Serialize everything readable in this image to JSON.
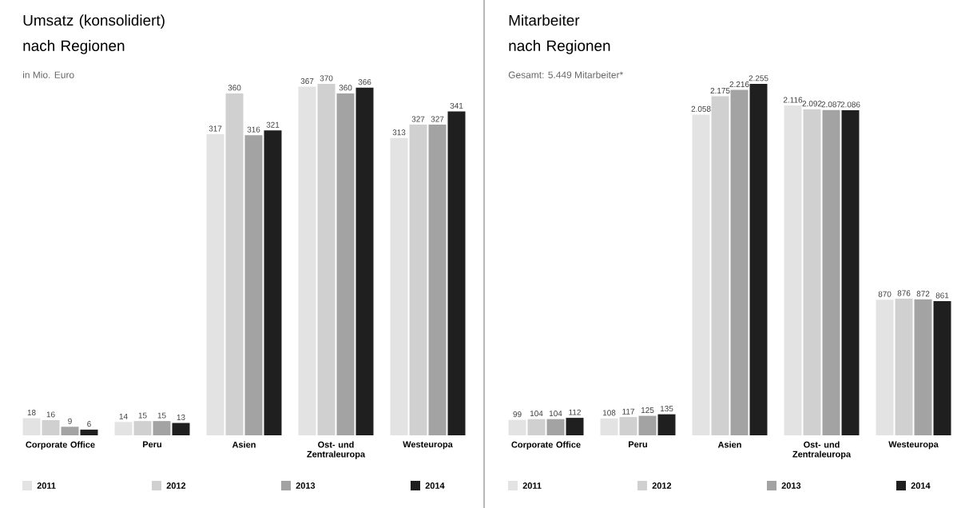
{
  "chart_data": [
    {
      "type": "bar",
      "title": "Umsatz (konsolidiert) nach Regionen",
      "subtitle": "in Mio. Euro",
      "categories": [
        "Corporate Office",
        "Peru",
        "Asien",
        "Ost- und Zentraleuropa",
        "Westeuropa"
      ],
      "legend": "bottom",
      "data_labels": true,
      "series": [
        {
          "name": "2011",
          "color": "#e3e3e3",
          "values": [
            18,
            14,
            317,
            367,
            313
          ]
        },
        {
          "name": "2012",
          "color": "#d0d0d0",
          "values": [
            16,
            15,
            360,
            370,
            327
          ]
        },
        {
          "name": "2013",
          "color": "#a3a3a3",
          "values": [
            9,
            15,
            316,
            360,
            327
          ]
        },
        {
          "name": "2014",
          "color": "#1f1f1f",
          "values": [
            6,
            13,
            321,
            366,
            341
          ]
        }
      ]
    },
    {
      "type": "bar",
      "title": "Mitarbeiter nach Regionen",
      "subtitle": "Gesamt: 5.449 Mitarbeiter*",
      "categories": [
        "Corporate Office",
        "Peru",
        "Asien",
        "Ost- und Zentraleuropa",
        "Westeuropa"
      ],
      "legend": "bottom",
      "series": [
        {
          "name": "2011",
          "color": "#e3e3e3",
          "values": [
            99,
            108,
            2058,
            2116,
            870
          ],
          "value_labels": [
            "99",
            "108",
            "2.058",
            "2.116",
            "870"
          ]
        },
        {
          "name": "2012",
          "color": "#d0d0d0",
          "values": [
            104,
            117,
            2175,
            2092,
            876
          ],
          "value_labels": [
            "104",
            "117",
            "2.175",
            "2.092",
            "876"
          ]
        },
        {
          "name": "2013",
          "color": "#a3a3a3",
          "values": [
            104,
            125,
            2216,
            2087,
            872
          ],
          "value_labels": [
            "104",
            "125",
            "2.216",
            "2.087",
            "872"
          ]
        },
        {
          "name": "2014",
          "color": "#1f1f1f",
          "values": [
            112,
            135,
            2255,
            2086,
            861
          ],
          "value_labels": [
            "112",
            "135",
            "2.255",
            "2.086",
            "861"
          ]
        }
      ]
    }
  ]
}
